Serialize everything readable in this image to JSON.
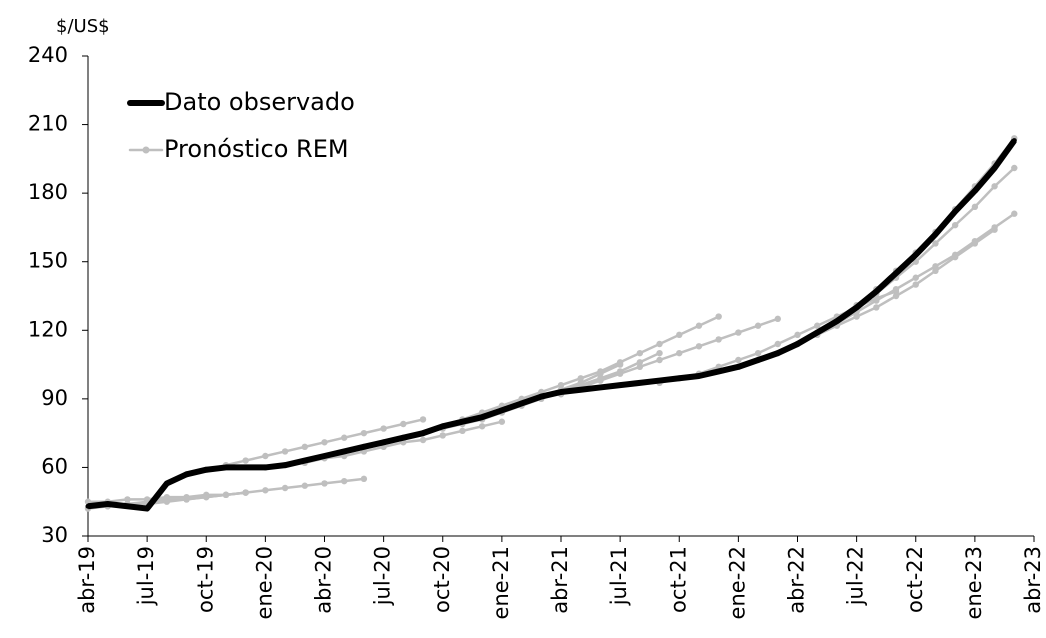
{
  "chart_data": {
    "type": "line",
    "y_label": "$/US$",
    "legend": "upper left",
    "ylim": [
      30,
      240
    ],
    "yticks": [
      30,
      60,
      90,
      120,
      150,
      180,
      210,
      240
    ],
    "categories": [
      "abr-19",
      null,
      null,
      "jul-19",
      null,
      null,
      "oct-19",
      null,
      null,
      "ene-20",
      null,
      null,
      "abr-20",
      null,
      null,
      "jul-20",
      null,
      null,
      "oct-20",
      null,
      null,
      "ene-21",
      null,
      null,
      "abr-21",
      null,
      null,
      "jul-21",
      null,
      null,
      "oct-21",
      null,
      null,
      "ene-22",
      null,
      null,
      "abr-22",
      null,
      null,
      "jul-22",
      null,
      null,
      "oct-22",
      null,
      null,
      "ene-23",
      null,
      null,
      "abr-23"
    ],
    "series": [
      {
        "name": "Dato observado",
        "color": "#000000",
        "values": [
          43,
          44,
          43,
          42,
          53,
          57,
          59,
          60,
          60,
          60,
          61,
          63,
          65,
          67,
          69,
          71,
          73,
          75,
          78,
          80,
          82,
          85,
          88,
          91,
          93,
          94,
          95,
          96,
          97,
          98,
          99,
          100,
          102,
          104,
          107,
          110,
          114,
          119,
          124,
          130,
          137,
          145,
          153,
          162,
          172,
          181,
          191,
          203,
          null
        ]
      },
      {
        "name": "Pronóstico REM",
        "color": "#bfbfbf",
        "values": [
          42,
          43,
          44,
          44,
          45,
          46,
          47,
          48,
          49,
          50,
          51,
          52,
          53,
          54,
          55,
          null,
          null,
          null,
          null,
          null,
          null,
          null,
          null,
          null,
          null,
          null,
          null,
          null,
          null,
          null,
          null,
          null,
          null,
          null,
          null,
          null,
          null,
          null,
          null,
          null,
          null,
          null,
          null,
          null,
          null,
          null,
          null,
          null,
          null
        ]
      },
      {
        "name": "Pronóstico REM",
        "color": "#bfbfbf",
        "values": [
          45,
          45,
          46,
          46,
          47,
          47,
          48,
          48,
          49,
          null,
          null,
          null,
          null,
          null,
          null,
          null,
          null,
          null,
          null,
          null,
          null,
          null,
          null,
          null,
          null,
          null,
          null,
          null,
          null,
          null,
          null,
          null,
          null,
          null,
          null,
          null,
          null,
          null,
          null,
          null,
          null,
          null,
          null,
          null,
          null,
          null,
          null,
          null,
          null
        ]
      },
      {
        "name": "Pronóstico REM",
        "color": "#bfbfbf",
        "values": [
          null,
          43,
          44,
          45,
          46,
          46,
          47,
          48,
          49,
          null,
          null,
          null,
          null,
          null,
          null,
          null,
          null,
          null,
          null,
          null,
          null,
          null,
          null,
          null,
          null,
          null,
          null,
          null,
          null,
          null,
          null,
          null,
          null,
          null,
          null,
          null,
          null,
          null,
          null,
          null,
          null,
          null,
          null,
          null,
          null,
          null,
          null,
          null,
          null
        ]
      },
      {
        "name": "Pronóstico REM",
        "color": "#bfbfbf",
        "values": [
          null,
          null,
          null,
          null,
          null,
          57,
          59,
          61,
          63,
          65,
          67,
          69,
          71,
          73,
          75,
          77,
          79,
          81,
          null,
          null,
          null,
          null,
          null,
          null,
          null,
          null,
          null,
          null,
          null,
          null,
          null,
          null,
          null,
          null,
          null,
          null,
          null,
          null,
          null,
          null,
          null,
          null,
          null,
          null,
          null,
          null,
          null,
          null,
          null
        ]
      },
      {
        "name": "Pronóstico REM",
        "color": "#bfbfbf",
        "values": [
          null,
          null,
          null,
          null,
          null,
          null,
          null,
          null,
          null,
          60,
          61,
          62,
          64,
          65,
          67,
          69,
          71,
          72,
          74,
          76,
          78,
          80,
          null,
          null,
          null,
          null,
          null,
          null,
          null,
          null,
          null,
          null,
          null,
          null,
          null,
          null,
          null,
          null,
          null,
          null,
          null,
          null,
          null,
          null,
          null,
          null,
          null,
          null,
          null
        ]
      },
      {
        "name": "Pronóstico REM",
        "color": "#bfbfbf",
        "values": [
          null,
          null,
          null,
          null,
          null,
          null,
          null,
          null,
          null,
          null,
          null,
          null,
          null,
          null,
          69,
          71,
          73,
          75,
          77,
          79,
          81,
          84,
          87,
          90,
          93,
          96,
          99,
          102,
          106,
          110,
          null,
          null,
          null,
          null,
          null,
          null,
          null,
          null,
          null,
          null,
          null,
          null,
          null,
          null,
          null,
          null,
          null,
          null,
          null
        ]
      },
      {
        "name": "Pronóstico REM",
        "color": "#bfbfbf",
        "values": [
          null,
          null,
          null,
          null,
          null,
          null,
          null,
          null,
          null,
          null,
          null,
          null,
          null,
          null,
          null,
          null,
          null,
          75,
          78,
          81,
          84,
          87,
          90,
          93,
          96,
          99,
          102,
          106,
          110,
          114,
          118,
          122,
          126,
          null,
          null,
          null,
          null,
          null,
          null,
          null,
          null,
          null,
          null,
          null,
          null,
          null,
          null,
          null,
          null
        ]
      },
      {
        "name": "Pronóstico REM",
        "color": "#bfbfbf",
        "values": [
          null,
          null,
          null,
          null,
          null,
          null,
          null,
          null,
          null,
          null,
          null,
          null,
          null,
          null,
          null,
          null,
          null,
          null,
          null,
          null,
          82,
          85,
          88,
          91,
          94,
          97,
          101,
          105,
          null,
          null,
          null,
          null,
          null,
          null,
          null,
          null,
          null,
          null,
          null,
          null,
          null,
          null,
          null,
          null,
          null,
          null,
          null,
          null,
          null
        ]
      },
      {
        "name": "Pronóstico REM",
        "color": "#bfbfbf",
        "values": [
          null,
          null,
          null,
          null,
          null,
          null,
          null,
          null,
          null,
          null,
          null,
          null,
          null,
          null,
          null,
          null,
          null,
          null,
          null,
          null,
          null,
          null,
          null,
          null,
          92,
          95,
          98,
          101,
          104,
          107,
          110,
          113,
          116,
          119,
          122,
          125,
          null,
          null,
          null,
          null,
          null,
          null,
          null,
          null,
          null,
          null,
          null,
          null,
          null
        ]
      },
      {
        "name": "Pronóstico REM",
        "color": "#bfbfbf",
        "values": [
          null,
          null,
          null,
          null,
          null,
          null,
          null,
          null,
          null,
          null,
          null,
          null,
          null,
          null,
          null,
          null,
          null,
          null,
          null,
          null,
          null,
          null,
          null,
          null,
          null,
          null,
          null,
          null,
          null,
          97,
          99,
          101,
          104,
          107,
          110,
          114,
          118,
          122,
          126,
          130,
          134,
          137,
          null,
          null,
          null,
          null,
          null,
          null,
          null
        ]
      },
      {
        "name": "Pronóstico REM",
        "color": "#bfbfbf",
        "values": [
          null,
          null,
          null,
          null,
          null,
          null,
          null,
          null,
          null,
          null,
          null,
          null,
          null,
          null,
          null,
          null,
          null,
          null,
          null,
          null,
          null,
          null,
          null,
          null,
          null,
          null,
          null,
          null,
          null,
          null,
          null,
          null,
          null,
          104,
          107,
          110,
          114,
          118,
          122,
          126,
          130,
          135,
          140,
          146,
          152,
          158,
          164,
          null,
          null
        ]
      },
      {
        "name": "Pronóstico REM",
        "color": "#bfbfbf",
        "values": [
          null,
          null,
          null,
          null,
          null,
          null,
          null,
          null,
          null,
          null,
          null,
          null,
          null,
          null,
          null,
          null,
          null,
          null,
          null,
          null,
          null,
          null,
          null,
          null,
          null,
          null,
          null,
          null,
          null,
          null,
          null,
          null,
          null,
          null,
          null,
          110,
          114,
          118,
          123,
          128,
          133,
          138,
          143,
          148,
          153,
          159,
          165,
          171,
          null
        ]
      },
      {
        "name": "Pronóstico REM",
        "color": "#bfbfbf",
        "values": [
          null,
          null,
          null,
          null,
          null,
          null,
          null,
          null,
          null,
          null,
          null,
          null,
          null,
          null,
          null,
          null,
          null,
          null,
          null,
          null,
          null,
          null,
          null,
          null,
          null,
          null,
          null,
          null,
          null,
          null,
          null,
          null,
          null,
          null,
          null,
          null,
          114,
          119,
          124,
          130,
          136,
          143,
          150,
          158,
          166,
          174,
          183,
          191,
          null
        ]
      },
      {
        "name": "Pronóstico REM",
        "color": "#bfbfbf",
        "values": [
          null,
          null,
          null,
          null,
          null,
          null,
          null,
          null,
          null,
          null,
          null,
          null,
          null,
          null,
          null,
          null,
          null,
          null,
          null,
          null,
          null,
          null,
          null,
          null,
          null,
          null,
          null,
          null,
          null,
          null,
          null,
          null,
          null,
          null,
          null,
          null,
          null,
          null,
          125,
          131,
          138,
          146,
          154,
          163,
          173,
          183,
          193,
          204,
          null
        ]
      }
    ]
  }
}
